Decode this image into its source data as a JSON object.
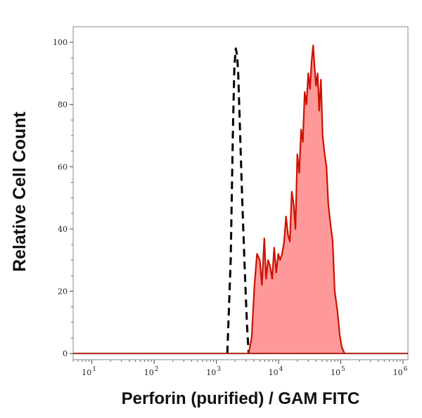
{
  "chart_data": {
    "type": "area",
    "title": "",
    "xlabel": "Perforin (purified) / GAM FITC",
    "ylabel": "Relative Cell Count",
    "x_scale": "log",
    "xlim": [
      5,
      1200000
    ],
    "ylim": [
      -2,
      105
    ],
    "grid": false,
    "legend": "none",
    "x_ticks": [
      {
        "value": 10,
        "base": "10",
        "exp": "1"
      },
      {
        "value": 100,
        "base": "10",
        "exp": "2"
      },
      {
        "value": 1000,
        "base": "10",
        "exp": "3"
      },
      {
        "value": 10000,
        "base": "10",
        "exp": "4"
      },
      {
        "value": 100000,
        "base": "10",
        "exp": "5"
      },
      {
        "value": 1000000,
        "base": "10",
        "exp": "6"
      }
    ],
    "y_ticks": [
      {
        "value": 0,
        "label": "0"
      },
      {
        "value": 20,
        "label": "20"
      },
      {
        "value": 40,
        "label": "40"
      },
      {
        "value": 60,
        "label": "60"
      },
      {
        "value": 80,
        "label": "80"
      },
      {
        "value": 100,
        "label": "100"
      }
    ],
    "series": [
      {
        "style": "dashed-outline",
        "color": "#000000",
        "x": [
          1500,
          1700,
          1850,
          1950,
          2050,
          2150,
          2250,
          2400,
          2600,
          2850,
          3100,
          3300
        ],
        "y": [
          0,
          30,
          72,
          92,
          98,
          96,
          90,
          72,
          50,
          28,
          10,
          0
        ]
      },
      {
        "style": "filled",
        "color": "#cc1100",
        "fill": "#ff9999",
        "x": [
          3300,
          3700,
          4100,
          4500,
          5000,
          5400,
          5900,
          6300,
          6800,
          7300,
          7900,
          8500,
          9200,
          9900,
          10600,
          11400,
          12300,
          13200,
          14200,
          15200,
          16300,
          17500,
          18700,
          20000,
          21500,
          23000,
          24600,
          26300,
          28100,
          30000,
          32000,
          34000,
          36000,
          38000,
          40000,
          42500,
          45000,
          48000,
          51000,
          55000,
          59000,
          63000,
          68000,
          74000,
          80000,
          88000,
          96000,
          104000,
          115000
        ],
        "y": [
          0,
          5,
          22,
          32,
          30,
          22,
          37,
          24,
          30,
          28,
          24,
          34,
          26,
          32,
          30,
          32,
          36,
          44,
          38,
          36,
          52,
          48,
          40,
          64,
          58,
          72,
          68,
          84,
          80,
          90,
          85,
          94,
          99,
          92,
          86,
          90,
          78,
          88,
          70,
          64,
          60,
          48,
          42,
          36,
          20,
          14,
          6,
          2,
          0
        ]
      }
    ]
  }
}
